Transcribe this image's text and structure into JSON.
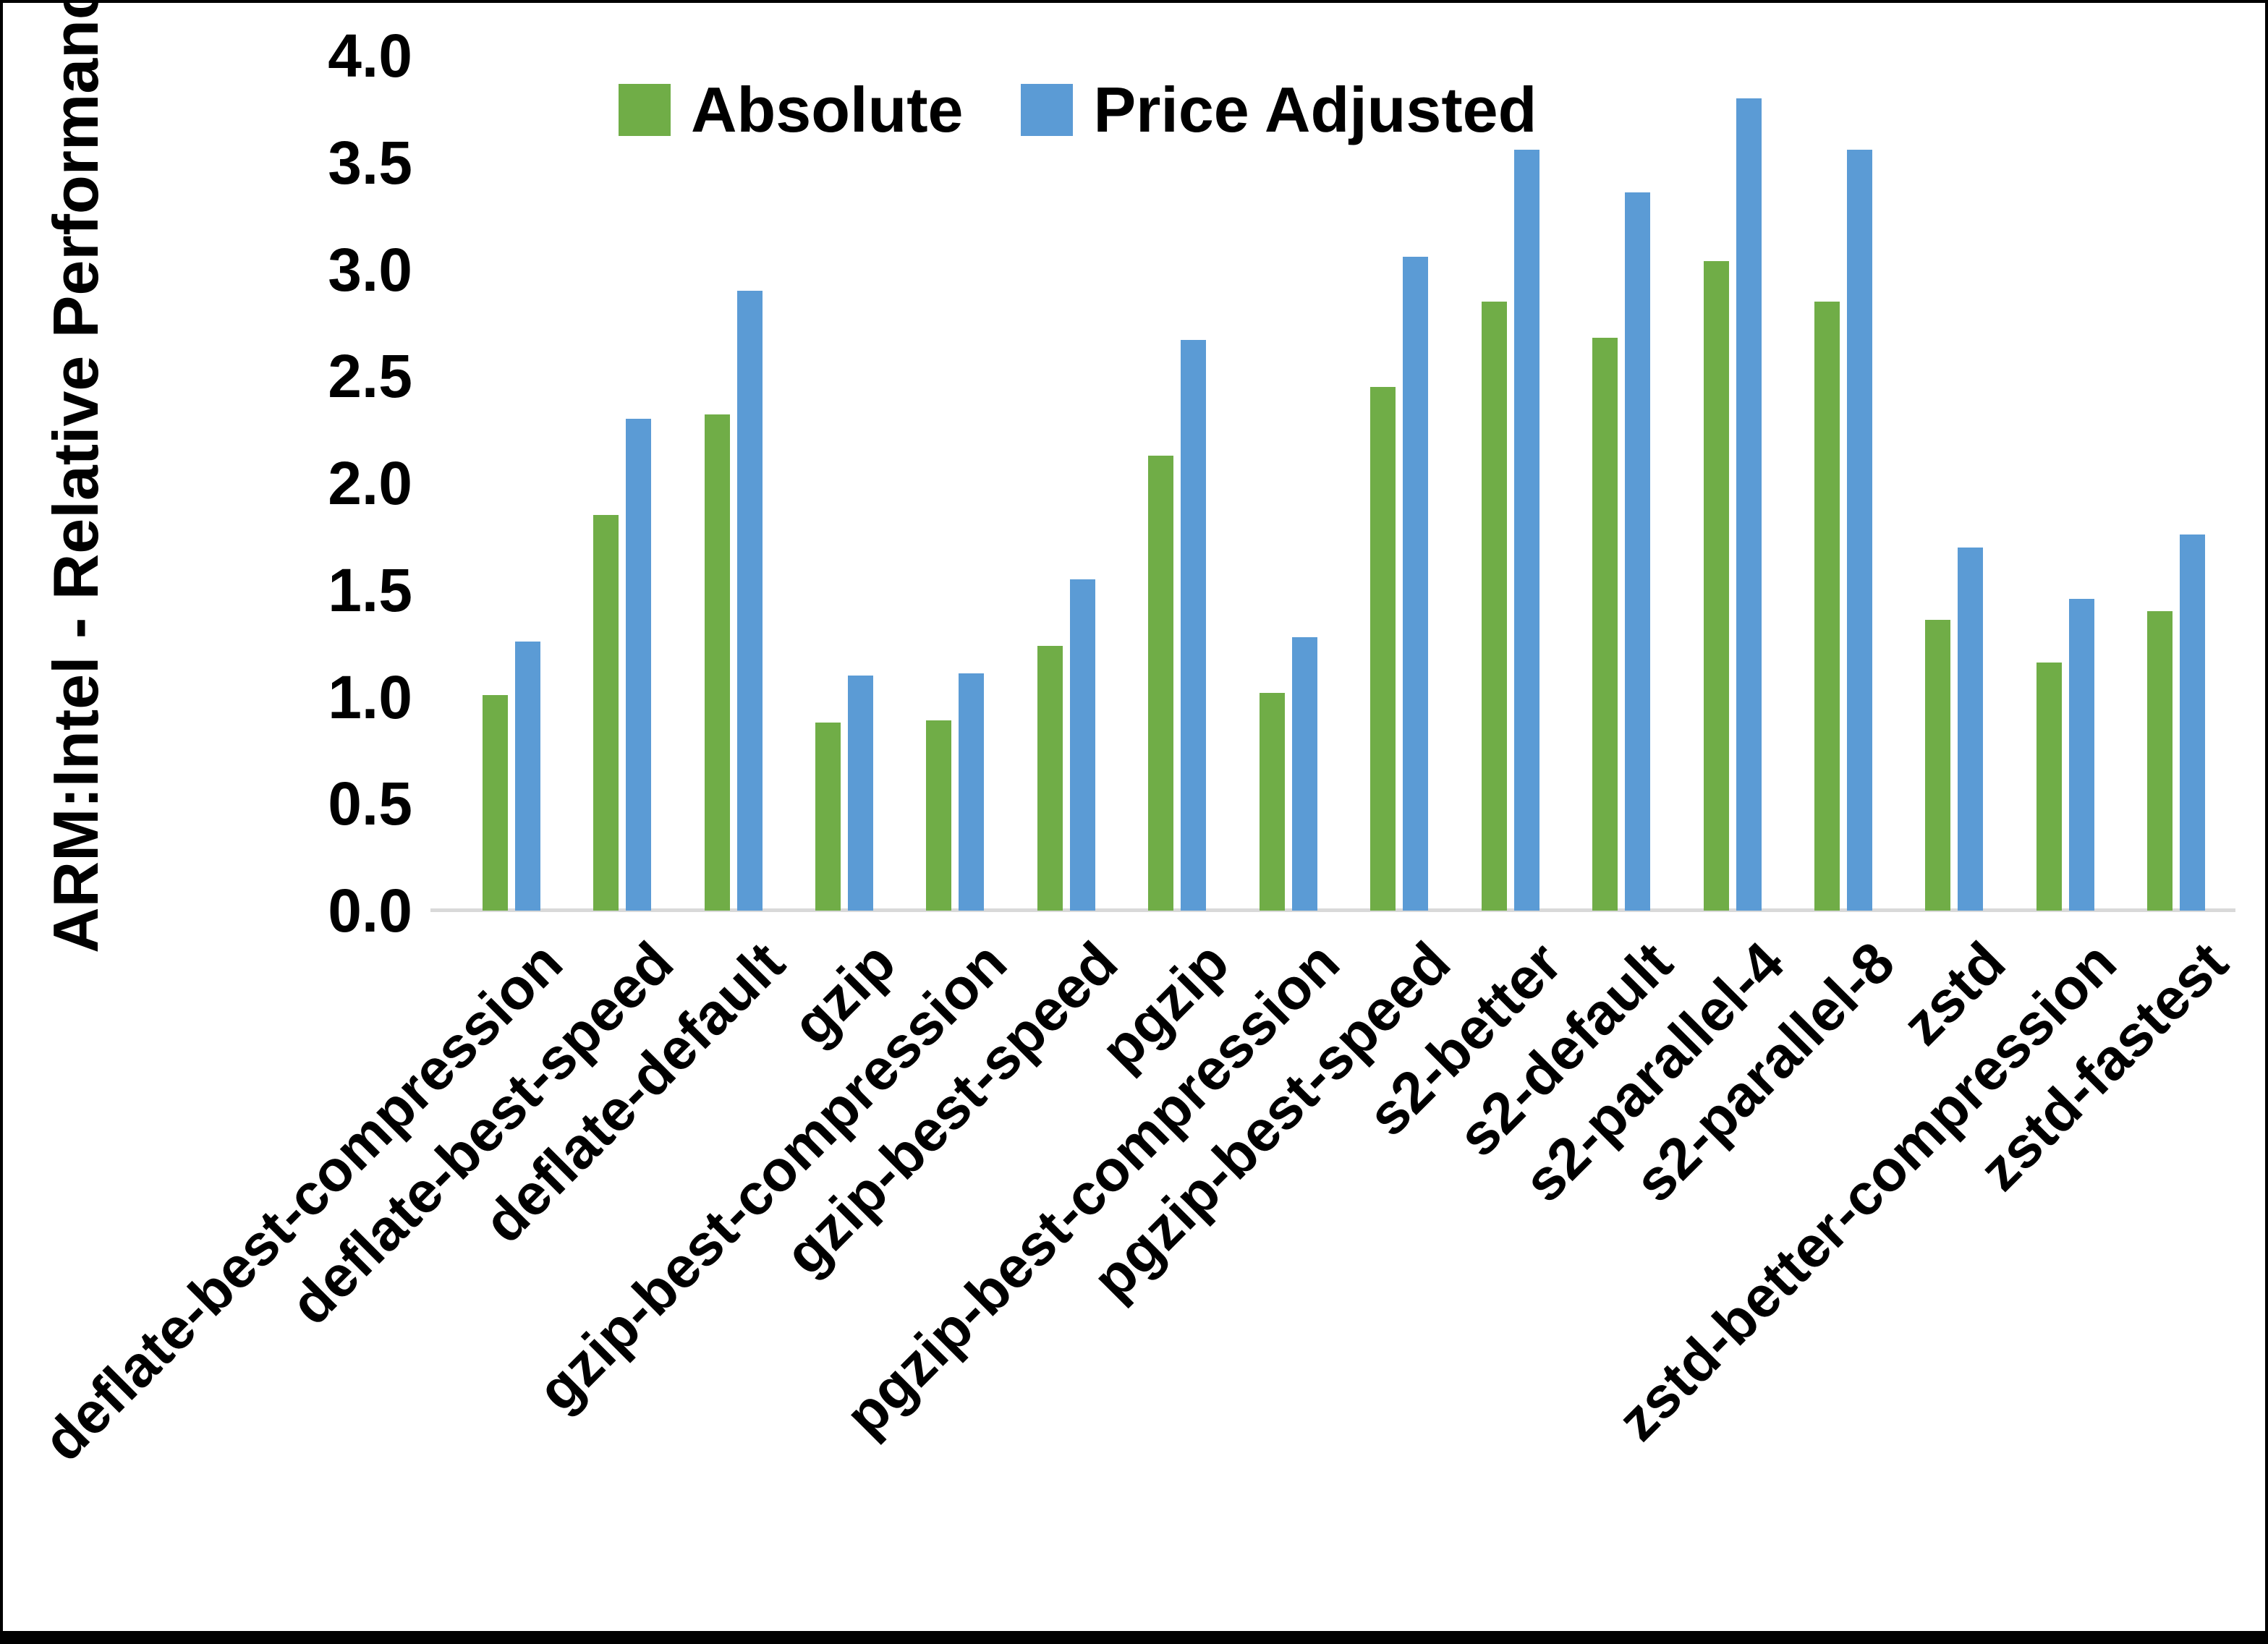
{
  "frame": {
    "background": "#FFFFFF",
    "border_color": "#000000",
    "baseline_color": "#D9D9D9"
  },
  "legend": {
    "position": "top",
    "items": [
      {
        "label": "Absolute",
        "color": "#70AD47",
        "swatch": "green-square"
      },
      {
        "label": "Price Adjusted",
        "color": "#5B9BD5",
        "swatch": "blue-square"
      }
    ]
  },
  "y_axis": {
    "title": "ARM:Intel - Relative Performance",
    "tick_labels": [
      "0.0",
      "0.5",
      "1.0",
      "1.5",
      "2.0",
      "2.5",
      "3.0",
      "3.5",
      "4.0"
    ],
    "min": 0.0,
    "max": 4.0
  },
  "chart_data": {
    "type": "bar",
    "title": "",
    "xlabel": "",
    "ylabel": "ARM:Intel - Relative Performance",
    "ylim": [
      0.0,
      4.0
    ],
    "ytick_step": 0.5,
    "grid": false,
    "legend_position": "top",
    "categories": [
      "deflate-best-compression",
      "deflate-best-speed",
      "deflate-default",
      "gzip",
      "gzip-best-compression",
      "gzip-best-speed",
      "pgzip",
      "pgzip-best-compression",
      "pgzip-best-speed",
      "s2-better",
      "s2-default",
      "s2-parallel-4",
      "s2-parallel-8",
      "zstd",
      "zstd-better-compression",
      "zstd-fastest"
    ],
    "series": [
      {
        "name": "Absolute",
        "color": "#70AD47",
        "values": [
          1.01,
          1.85,
          2.32,
          0.88,
          0.89,
          1.24,
          2.13,
          1.02,
          2.45,
          2.85,
          2.68,
          3.04,
          2.85,
          1.36,
          1.16,
          1.4
        ]
      },
      {
        "name": "Price Adjusted",
        "color": "#5B9BD5",
        "values": [
          1.26,
          2.3,
          2.9,
          1.1,
          1.11,
          1.55,
          2.67,
          1.28,
          3.06,
          3.56,
          3.36,
          3.8,
          3.56,
          1.7,
          1.46,
          1.76
        ]
      }
    ]
  }
}
